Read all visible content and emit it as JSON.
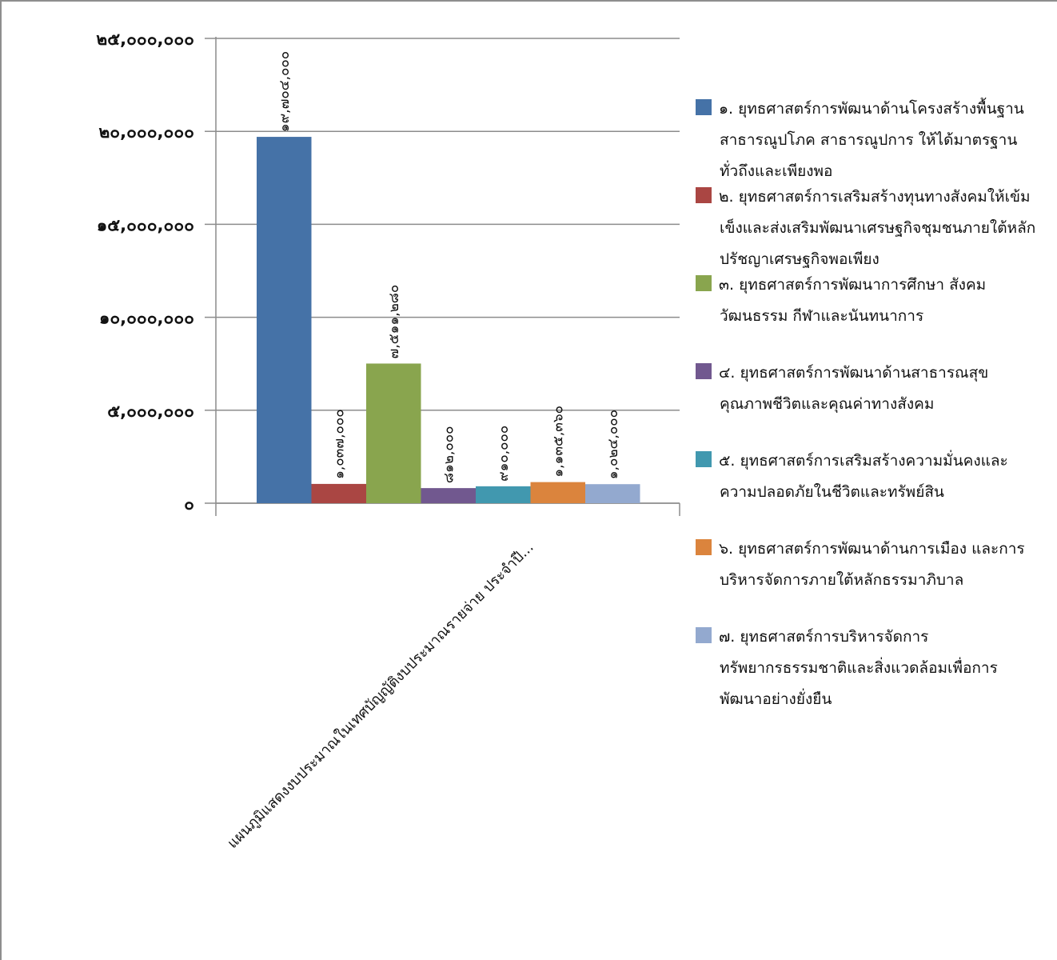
{
  "chart_data": {
    "type": "bar",
    "category": "แผนภูมิแสดงงบประมาณในเทศบัญญัติงบประมาณรายจ่าย ประจำปี...",
    "ylim": [
      0,
      25000000
    ],
    "yticks": [
      {
        "value": 0,
        "label": "๐"
      },
      {
        "value": 5000000,
        "label": "๕,๐๐๐,๐๐๐"
      },
      {
        "value": 10000000,
        "label": "๑๐,๐๐๐,๐๐๐"
      },
      {
        "value": 15000000,
        "label": "๑๕,๐๐๐,๐๐๐"
      },
      {
        "value": 20000000,
        "label": "๒๐,๐๐๐,๐๐๐"
      },
      {
        "value": 25000000,
        "label": "๒๕,๐๐๐,๐๐๐"
      }
    ],
    "grid": true,
    "legend_position": "right",
    "series": [
      {
        "name": "๑. ยุทธศาสตร์การพัฒนาด้านโครงสร้างพื้นฐาน สาธารณูปโภค สาธารณูปการ ให้ได้มาตรฐาน ทั่วถึงและเพียงพอ",
        "value": 19704000,
        "label": "๑๙,๗๐๔,๐๐๐",
        "color": "#4572a7"
      },
      {
        "name": "๒. ยุทธศาสตร์การเสริมสร้างทุนทางสังคมให้เข้มเข็งและส่งเสริมพัฒนาเศรษฐกิจชุมชนภายใต้หลักปรัชญาเศรษฐกิจพอเพียง",
        "value": 1037000,
        "label": "๑,๐๓๗,๐๐๐",
        "color": "#aa4643"
      },
      {
        "name": "๓. ยุทธศาสตร์การพัฒนาการศึกษา สังคม วัฒนธรรม กีฬาและนันทนาการ",
        "value": 7511280,
        "label": "๗,๕๑๑,๒๘๐",
        "color": "#89a54e"
      },
      {
        "name": "๔. ยุทธศาสตร์การพัฒนาด้านสาธารณสุข คุณภาพชีวิตและคุณค่าทางสังคม",
        "value": 812000,
        "label": "๘๑๒,๐๐๐",
        "color": "#71588f"
      },
      {
        "name": "๕. ยุทธศาสตร์การเสริมสร้างความมั่นคงและความปลอดภัยในชีวิตและทรัพย์สิน",
        "value": 910000,
        "label": "๙๑๐,๐๐๐",
        "color": "#4198af"
      },
      {
        "name": "๖. ยุทธศาสตร์การพัฒนาด้านการเมือง และการบริหารจัดการภายใต้หลักธรรมาภิบาล",
        "value": 1135360,
        "label": "๑,๑๓๕,๓๖๐",
        "color": "#db843d"
      },
      {
        "name": "๗. ยุทธศาสตร์การบริหารจัดการทรัพยากรธรรมชาติและสิ่งแวดล้อมเพื่อการพัฒนาอย่างยั่งยืน",
        "value": 1024000,
        "label": "๑,๐๒๔,๐๐๐",
        "color": "#93a9cf"
      }
    ],
    "legend": [
      {
        "lines": [
          "๑. ยุทธศาสตร์การพัฒนาด้านโครงสร้างพื้นฐาน",
          "สาธารณูปโภค สาธารณูปการ ให้ได้มาตรฐาน",
          "ทั่วถึงและเพียงพอ"
        ]
      },
      {
        "lines": [
          "๒. ยุทธศาสตร์การเสริมสร้างทุนทางสังคมให้เข้ม",
          "เข็งและส่งเสริมพัฒนาเศรษฐกิจชุมชนภายใต้หลัก",
          "ปรัชญาเศรษฐกิจพอเพียง"
        ]
      },
      {
        "lines": [
          "๓. ยุทธศาสตร์การพัฒนาการศึกษา สังคม",
          "วัฒนธรรม กีฬาและนันทนาการ"
        ]
      },
      {
        "lines": [
          "๔. ยุทธศาสตร์การพัฒนาด้านสาธารณสุข",
          "คุณภาพชีวิตและคุณค่าทางสังคม"
        ]
      },
      {
        "lines": [
          "๕. ยุทธศาสตร์การเสริมสร้างความมั่นคงและ",
          "ความปลอดภัยในชีวิตและทรัพย์สิน"
        ]
      },
      {
        "lines": [
          "๖. ยุทธศาสตร์การพัฒนาด้านการเมือง และการ",
          "บริหารจัดการภายใต้หลักธรรมาภิบาล"
        ]
      },
      {
        "lines": [
          "๗. ยุทธศาสตร์การบริหารจัดการ",
          "ทรัพยากรธรรมชาติและสิ่งแวดล้อมเพื่อการ",
          "พัฒนาอย่างยั่งยืน"
        ]
      }
    ]
  }
}
